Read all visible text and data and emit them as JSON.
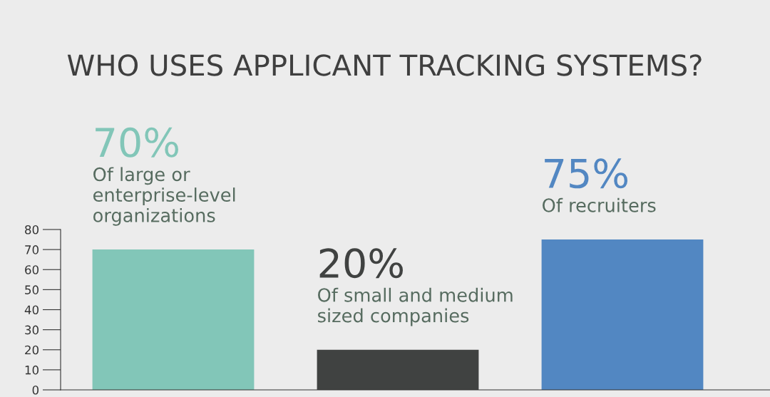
{
  "chart_data": {
    "type": "bar",
    "title": "WHO USES APPLICANT TRACKING SYSTEMS?",
    "categories": [
      "Of large or\nenterprise-level\norganizations",
      "Of small and medium\nsized companies",
      "Of recruiters"
    ],
    "values": [
      70,
      20,
      75
    ],
    "colors": [
      "#82c6b8",
      "#404241",
      "#5287c2"
    ],
    "value_labels": [
      "70%",
      "20%",
      "75%"
    ],
    "ylim": [
      0,
      80
    ],
    "yticks": [
      0,
      10,
      20,
      30,
      40,
      50,
      60,
      70,
      80
    ],
    "grid": false
  }
}
